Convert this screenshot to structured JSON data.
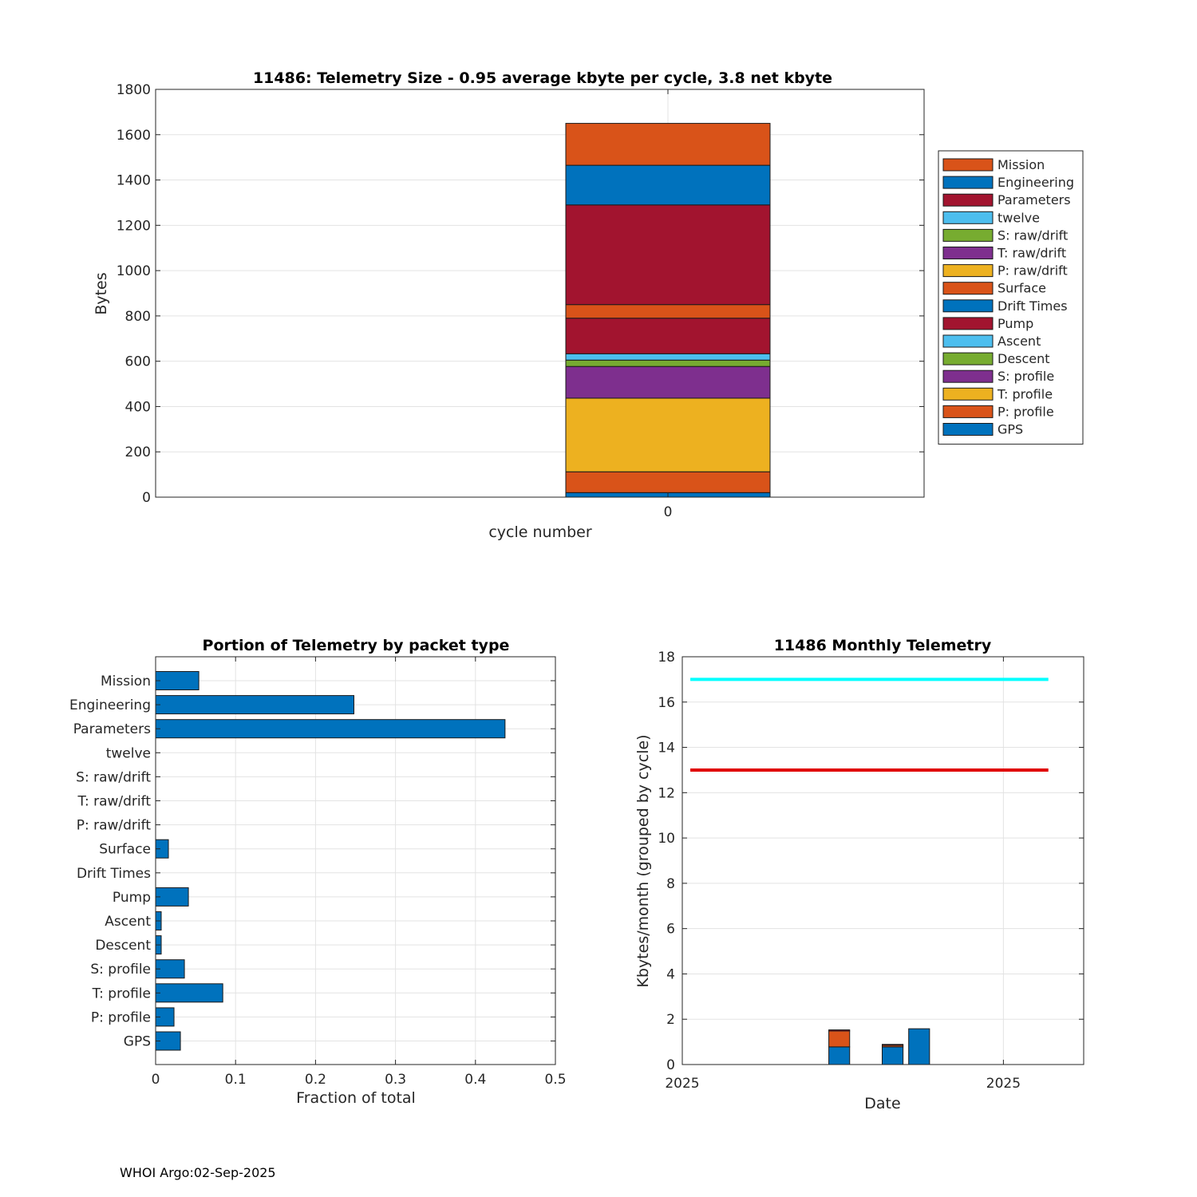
{
  "chart_data": [
    {
      "type": "bar",
      "stacked": true,
      "title": "11486: Telemetry Size - 0.95 average kbyte per cycle,    3.8 net kbyte",
      "xlabel": "cycle number",
      "ylabel": "Bytes",
      "categories": [
        "0"
      ],
      "ylim": [
        0,
        1800
      ],
      "yticks": [
        0,
        200,
        400,
        600,
        800,
        1000,
        1200,
        1400,
        1600,
        1800
      ],
      "grid": true,
      "legend_position": "outside-right",
      "series": [
        {
          "name": "GPS",
          "color": "#0072BD",
          "values": [
            20
          ]
        },
        {
          "name": "P: profile",
          "color": "#D95319",
          "values": [
            92
          ]
        },
        {
          "name": "T: profile",
          "color": "#EDB120",
          "values": [
            325
          ]
        },
        {
          "name": "S: profile",
          "color": "#7E2F8E",
          "values": [
            140
          ]
        },
        {
          "name": "Descent",
          "color": "#77AC30",
          "values": [
            28
          ]
        },
        {
          "name": "Ascent",
          "color": "#4DBEEE",
          "values": [
            28
          ]
        },
        {
          "name": "Pump",
          "color": "#A2142F",
          "values": [
            157
          ]
        },
        {
          "name": "Drift Times",
          "color": "#0072BD",
          "values": [
            0
          ]
        },
        {
          "name": "Surface",
          "color": "#D95319",
          "values": [
            60
          ]
        },
        {
          "name": "P: raw/drift",
          "color": "#EDB120",
          "values": [
            0
          ]
        },
        {
          "name": "T: raw/drift",
          "color": "#7E2F8E",
          "values": [
            0
          ]
        },
        {
          "name": "S: raw/drift",
          "color": "#77AC30",
          "values": [
            0
          ]
        },
        {
          "name": "twelve",
          "color": "#4DBEEE",
          "values": [
            0
          ]
        },
        {
          "name": "Parameters",
          "color": "#A2142F",
          "values": [
            440
          ]
        },
        {
          "name": "Engineering",
          "color": "#0072BD",
          "values": [
            175
          ]
        },
        {
          "name": "Mission",
          "color": "#D95319",
          "values": [
            185
          ]
        }
      ]
    },
    {
      "type": "bar",
      "orientation": "horizontal",
      "title": "Portion of Telemetry by packet type",
      "xlabel": "Fraction of total",
      "ylabel": "",
      "xlim": [
        0,
        0.5
      ],
      "xticks": [
        0,
        0.1,
        0.2,
        0.3,
        0.4,
        0.5
      ],
      "xtick_labels": [
        "0",
        "0.1",
        "0.2",
        "0.3",
        "0.4",
        "0.5"
      ],
      "grid": true,
      "color": "#0072BD",
      "categories": [
        "Mission",
        "Engineering",
        "Parameters",
        "twelve",
        "S: raw/drift",
        "T: raw/drift",
        "P: raw/drift",
        "Surface",
        "Drift Times",
        "Pump",
        "Ascent",
        "Descent",
        "S: profile",
        "T: profile",
        "P: profile",
        "GPS"
      ],
      "values": [
        0.054,
        0.248,
        0.437,
        0,
        0,
        0,
        0,
        0.016,
        0,
        0.041,
        0.007,
        0.007,
        0.036,
        0.084,
        0.023,
        0.031
      ]
    },
    {
      "type": "bar",
      "stacked": true,
      "title": "11486 Monthly Telemetry",
      "xlabel": "Date",
      "ylabel": "Kbytes/month (grouped by cycle)",
      "ylim": [
        0,
        18
      ],
      "yticks": [
        0,
        2,
        4,
        6,
        8,
        10,
        12,
        14,
        16,
        18
      ],
      "xlim": [
        0,
        1
      ],
      "xticks": [
        0,
        0.8
      ],
      "xtick_labels": [
        "2025",
        "2025"
      ],
      "grid": true,
      "bars": [
        {
          "x": 0.365,
          "width": 0.052,
          "segments": [
            {
              "value": 0.78,
              "color": "#0072BD"
            },
            {
              "value": 0.7,
              "color": "#D95319"
            },
            {
              "value": 0.05,
              "color": "#A2142F"
            }
          ]
        },
        {
          "x": 0.498,
          "width": 0.052,
          "segments": [
            {
              "value": 0.78,
              "color": "#0072BD"
            },
            {
              "value": 0.07,
              "color": "#D95319"
            },
            {
              "value": 0.04,
              "color": "#A2142F"
            }
          ]
        },
        {
          "x": 0.564,
          "width": 0.052,
          "segments": [
            {
              "value": 1.58,
              "color": "#0072BD"
            }
          ]
        }
      ],
      "lines": [
        {
          "y": 17,
          "x_start": 0.02,
          "x_end": 0.912,
          "color": "#00FFFF"
        },
        {
          "y": 13,
          "x_start": 0.02,
          "x_end": 0.912,
          "color": "#E00000"
        }
      ]
    }
  ],
  "footer": "WHOI Argo:02-Sep-2025"
}
